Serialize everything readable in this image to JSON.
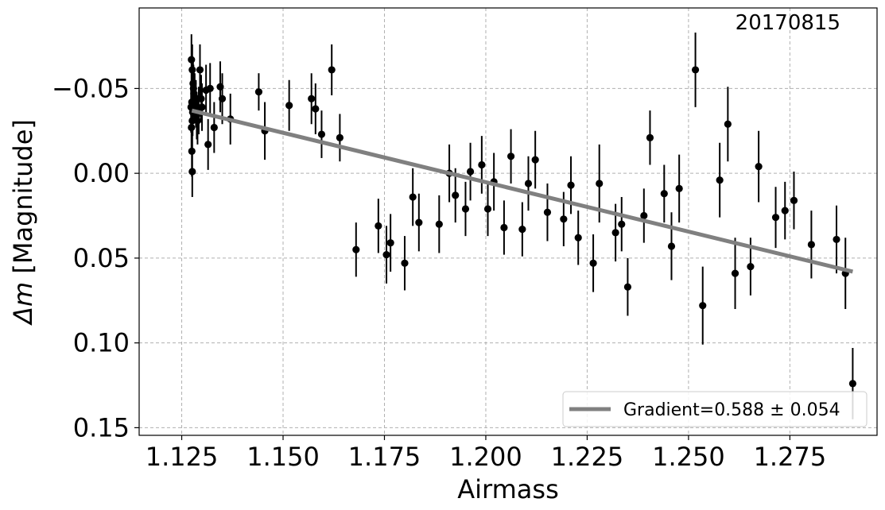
{
  "chart_data": {
    "type": "scatter",
    "annotation": "20170815",
    "xlabel": "Airmass",
    "ylabel_math": "Δm",
    "ylabel_text": " [Magnitude]",
    "xlim": [
      1.1145,
      1.2965
    ],
    "ylim": [
      0.1545,
      -0.0975
    ],
    "y_inverted": true,
    "grid": true,
    "x_ticks": [
      1.125,
      1.15,
      1.175,
      1.2,
      1.225,
      1.25,
      1.275
    ],
    "x_tick_labels": [
      "1.125",
      "1.150",
      "1.175",
      "1.200",
      "1.225",
      "1.250",
      "1.275"
    ],
    "y_ticks": [
      -0.05,
      0.0,
      0.05,
      0.1,
      0.15
    ],
    "y_tick_labels": [
      "−0.05",
      "0.00",
      "0.05",
      "0.10",
      "0.15"
    ],
    "legend": {
      "label": "Gradient=0.588 ± 0.054",
      "position": "lower-right"
    },
    "fit_line": {
      "color": "#808080",
      "x": [
        1.1275,
        1.2905
      ],
      "y": [
        -0.037,
        0.058
      ]
    },
    "marker_color": "#000000",
    "points": [
      {
        "x": 1.1274,
        "y": -0.067,
        "e": 0.015
      },
      {
        "x": 1.1276,
        "y": -0.061,
        "e": 0.015
      },
      {
        "x": 1.1278,
        "y": -0.053,
        "e": 0.014
      },
      {
        "x": 1.1279,
        "y": -0.05,
        "e": 0.014
      },
      {
        "x": 1.128,
        "y": -0.047,
        "e": 0.014
      },
      {
        "x": 1.1282,
        "y": -0.045,
        "e": 0.014
      },
      {
        "x": 1.1275,
        "y": -0.042,
        "e": 0.014
      },
      {
        "x": 1.1273,
        "y": -0.039,
        "e": 0.015
      },
      {
        "x": 1.1277,
        "y": -0.036,
        "e": 0.014
      },
      {
        "x": 1.1276,
        "y": -0.031,
        "e": 0.015
      },
      {
        "x": 1.1274,
        "y": -0.027,
        "e": 0.015
      },
      {
        "x": 1.1275,
        "y": -0.013,
        "e": 0.015
      },
      {
        "x": 1.1276,
        "y": -0.001,
        "e": 0.015
      },
      {
        "x": 1.1285,
        "y": -0.041,
        "e": 0.014
      },
      {
        "x": 1.1287,
        "y": -0.034,
        "e": 0.014
      },
      {
        "x": 1.1289,
        "y": -0.031,
        "e": 0.014
      },
      {
        "x": 1.1292,
        "y": -0.037,
        "e": 0.014
      },
      {
        "x": 1.1295,
        "y": -0.061,
        "e": 0.015
      },
      {
        "x": 1.1298,
        "y": -0.044,
        "e": 0.014
      },
      {
        "x": 1.13,
        "y": -0.039,
        "e": 0.014
      },
      {
        "x": 1.131,
        "y": -0.049,
        "e": 0.015
      },
      {
        "x": 1.1315,
        "y": -0.017,
        "e": 0.015
      },
      {
        "x": 1.132,
        "y": -0.05,
        "e": 0.015
      },
      {
        "x": 1.133,
        "y": -0.027,
        "e": 0.015
      },
      {
        "x": 1.1345,
        "y": -0.051,
        "e": 0.015
      },
      {
        "x": 1.135,
        "y": -0.044,
        "e": 0.015
      },
      {
        "x": 1.137,
        "y": -0.032,
        "e": 0.015
      },
      {
        "x": 1.144,
        "y": -0.048,
        "e": 0.011
      },
      {
        "x": 1.1455,
        "y": -0.025,
        "e": 0.017
      },
      {
        "x": 1.1515,
        "y": -0.04,
        "e": 0.015
      },
      {
        "x": 1.157,
        "y": -0.044,
        "e": 0.015
      },
      {
        "x": 1.158,
        "y": -0.038,
        "e": 0.015
      },
      {
        "x": 1.1595,
        "y": -0.023,
        "e": 0.014
      },
      {
        "x": 1.162,
        "y": -0.061,
        "e": 0.015
      },
      {
        "x": 1.164,
        "y": -0.021,
        "e": 0.014
      },
      {
        "x": 1.168,
        "y": 0.045,
        "e": 0.016
      },
      {
        "x": 1.1735,
        "y": 0.031,
        "e": 0.016
      },
      {
        "x": 1.1755,
        "y": 0.048,
        "e": 0.017
      },
      {
        "x": 1.1765,
        "y": 0.041,
        "e": 0.017
      },
      {
        "x": 1.18,
        "y": 0.053,
        "e": 0.016
      },
      {
        "x": 1.182,
        "y": 0.014,
        "e": 0.017
      },
      {
        "x": 1.1835,
        "y": 0.029,
        "e": 0.017
      },
      {
        "x": 1.1885,
        "y": 0.03,
        "e": 0.017
      },
      {
        "x": 1.191,
        "y": 0.0,
        "e": 0.017
      },
      {
        "x": 1.1925,
        "y": 0.013,
        "e": 0.016
      },
      {
        "x": 1.195,
        "y": 0.021,
        "e": 0.016
      },
      {
        "x": 1.1962,
        "y": -0.001,
        "e": 0.017
      },
      {
        "x": 1.199,
        "y": -0.005,
        "e": 0.017
      },
      {
        "x": 1.2005,
        "y": 0.021,
        "e": 0.016
      },
      {
        "x": 1.202,
        "y": 0.005,
        "e": 0.017
      },
      {
        "x": 1.2045,
        "y": 0.032,
        "e": 0.016
      },
      {
        "x": 1.2062,
        "y": -0.01,
        "e": 0.016
      },
      {
        "x": 1.209,
        "y": 0.033,
        "e": 0.016
      },
      {
        "x": 1.2105,
        "y": 0.006,
        "e": 0.016
      },
      {
        "x": 1.2122,
        "y": -0.008,
        "e": 0.017
      },
      {
        "x": 1.2152,
        "y": 0.023,
        "e": 0.017
      },
      {
        "x": 1.2192,
        "y": 0.027,
        "e": 0.016
      },
      {
        "x": 1.221,
        "y": 0.007,
        "e": 0.017
      },
      {
        "x": 1.2228,
        "y": 0.038,
        "e": 0.016
      },
      {
        "x": 1.2265,
        "y": 0.053,
        "e": 0.017
      },
      {
        "x": 1.228,
        "y": 0.006,
        "e": 0.023
      },
      {
        "x": 1.232,
        "y": 0.035,
        "e": 0.017
      },
      {
        "x": 1.2335,
        "y": 0.03,
        "e": 0.016
      },
      {
        "x": 1.235,
        "y": 0.067,
        "e": 0.017
      },
      {
        "x": 1.239,
        "y": 0.025,
        "e": 0.016
      },
      {
        "x": 1.2405,
        "y": -0.021,
        "e": 0.016
      },
      {
        "x": 1.244,
        "y": 0.012,
        "e": 0.017
      },
      {
        "x": 1.2458,
        "y": 0.043,
        "e": 0.02
      },
      {
        "x": 1.2477,
        "y": 0.009,
        "e": 0.02
      },
      {
        "x": 1.2517,
        "y": -0.061,
        "e": 0.022
      },
      {
        "x": 1.2535,
        "y": 0.078,
        "e": 0.023
      },
      {
        "x": 1.2577,
        "y": 0.004,
        "e": 0.022
      },
      {
        "x": 1.2597,
        "y": -0.029,
        "e": 0.022
      },
      {
        "x": 1.2615,
        "y": 0.059,
        "e": 0.021
      },
      {
        "x": 1.2653,
        "y": 0.055,
        "e": 0.017
      },
      {
        "x": 1.2673,
        "y": -0.004,
        "e": 0.021
      },
      {
        "x": 1.2715,
        "y": 0.026,
        "e": 0.018
      },
      {
        "x": 1.2738,
        "y": 0.022,
        "e": 0.017
      },
      {
        "x": 1.276,
        "y": 0.016,
        "e": 0.017
      },
      {
        "x": 1.2803,
        "y": 0.042,
        "e": 0.02
      },
      {
        "x": 1.2865,
        "y": 0.039,
        "e": 0.02
      },
      {
        "x": 1.2887,
        "y": 0.059,
        "e": 0.021
      },
      {
        "x": 1.2905,
        "y": 0.124,
        "e": 0.021
      }
    ]
  }
}
